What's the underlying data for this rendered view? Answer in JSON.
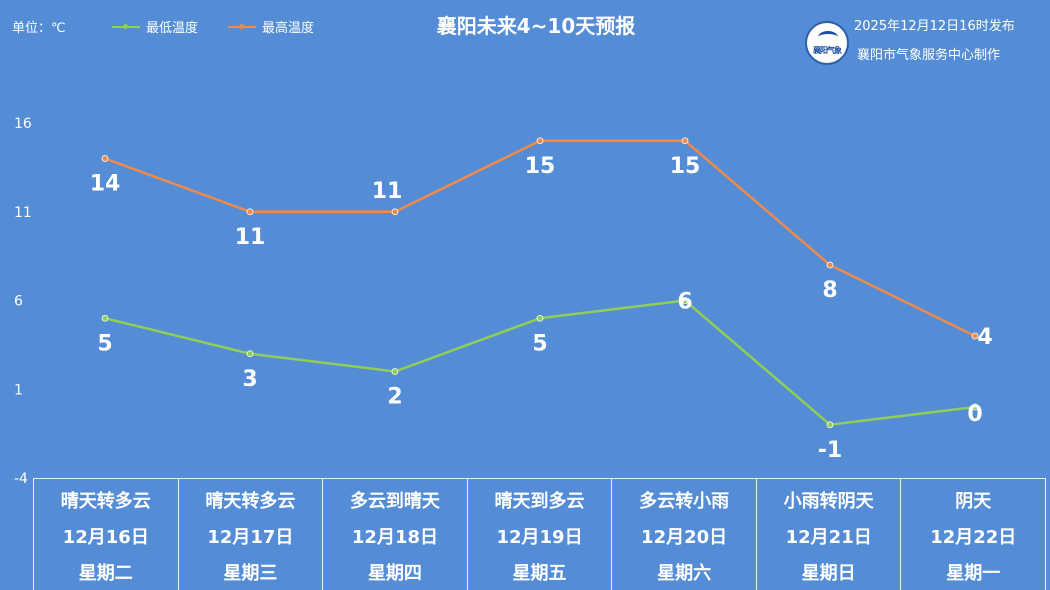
{
  "header": {
    "unit_label": "单位：℃",
    "title": "襄阳未来4~10天预报",
    "publish_time": "2025年12月12日16时发布",
    "producer": "襄阳市气象服务中心制作",
    "logo_text": "襄阳气象"
  },
  "colors": {
    "low": "#8fcf55",
    "high": "#f08a4b",
    "background": "#548dd6"
  },
  "chart_data": {
    "type": "line",
    "title": "襄阳未来4~10天预报",
    "ylabel": "单位：℃",
    "ylim": [
      -4,
      16
    ],
    "yticks": [
      -4,
      1,
      6,
      11,
      16
    ],
    "grid": false,
    "legend": "top-left",
    "categories": [
      "12月16日",
      "12月17日",
      "12月18日",
      "12月19日",
      "12月20日",
      "12月21日",
      "12月22日"
    ],
    "series": [
      {
        "name": "最低温度",
        "values": [
          5,
          3,
          2,
          5,
          6,
          -1,
          0
        ]
      },
      {
        "name": "最高温度",
        "values": [
          14,
          11,
          11,
          15,
          15,
          8,
          4
        ]
      }
    ]
  },
  "days": [
    {
      "weather": "晴天转多云",
      "date": "12月16日",
      "weekday": "星期二"
    },
    {
      "weather": "晴天转多云",
      "date": "12月17日",
      "weekday": "星期三"
    },
    {
      "weather": "多云到晴天",
      "date": "12月18日",
      "weekday": "星期四"
    },
    {
      "weather": "晴天到多云",
      "date": "12月19日",
      "weekday": "星期五"
    },
    {
      "weather": "多云转小雨",
      "date": "12月20日",
      "weekday": "星期六"
    },
    {
      "weather": "小雨转阴天",
      "date": "12月21日",
      "weekday": "星期日"
    },
    {
      "weather": "阴天",
      "date": "12月22日",
      "weekday": "星期一"
    }
  ]
}
